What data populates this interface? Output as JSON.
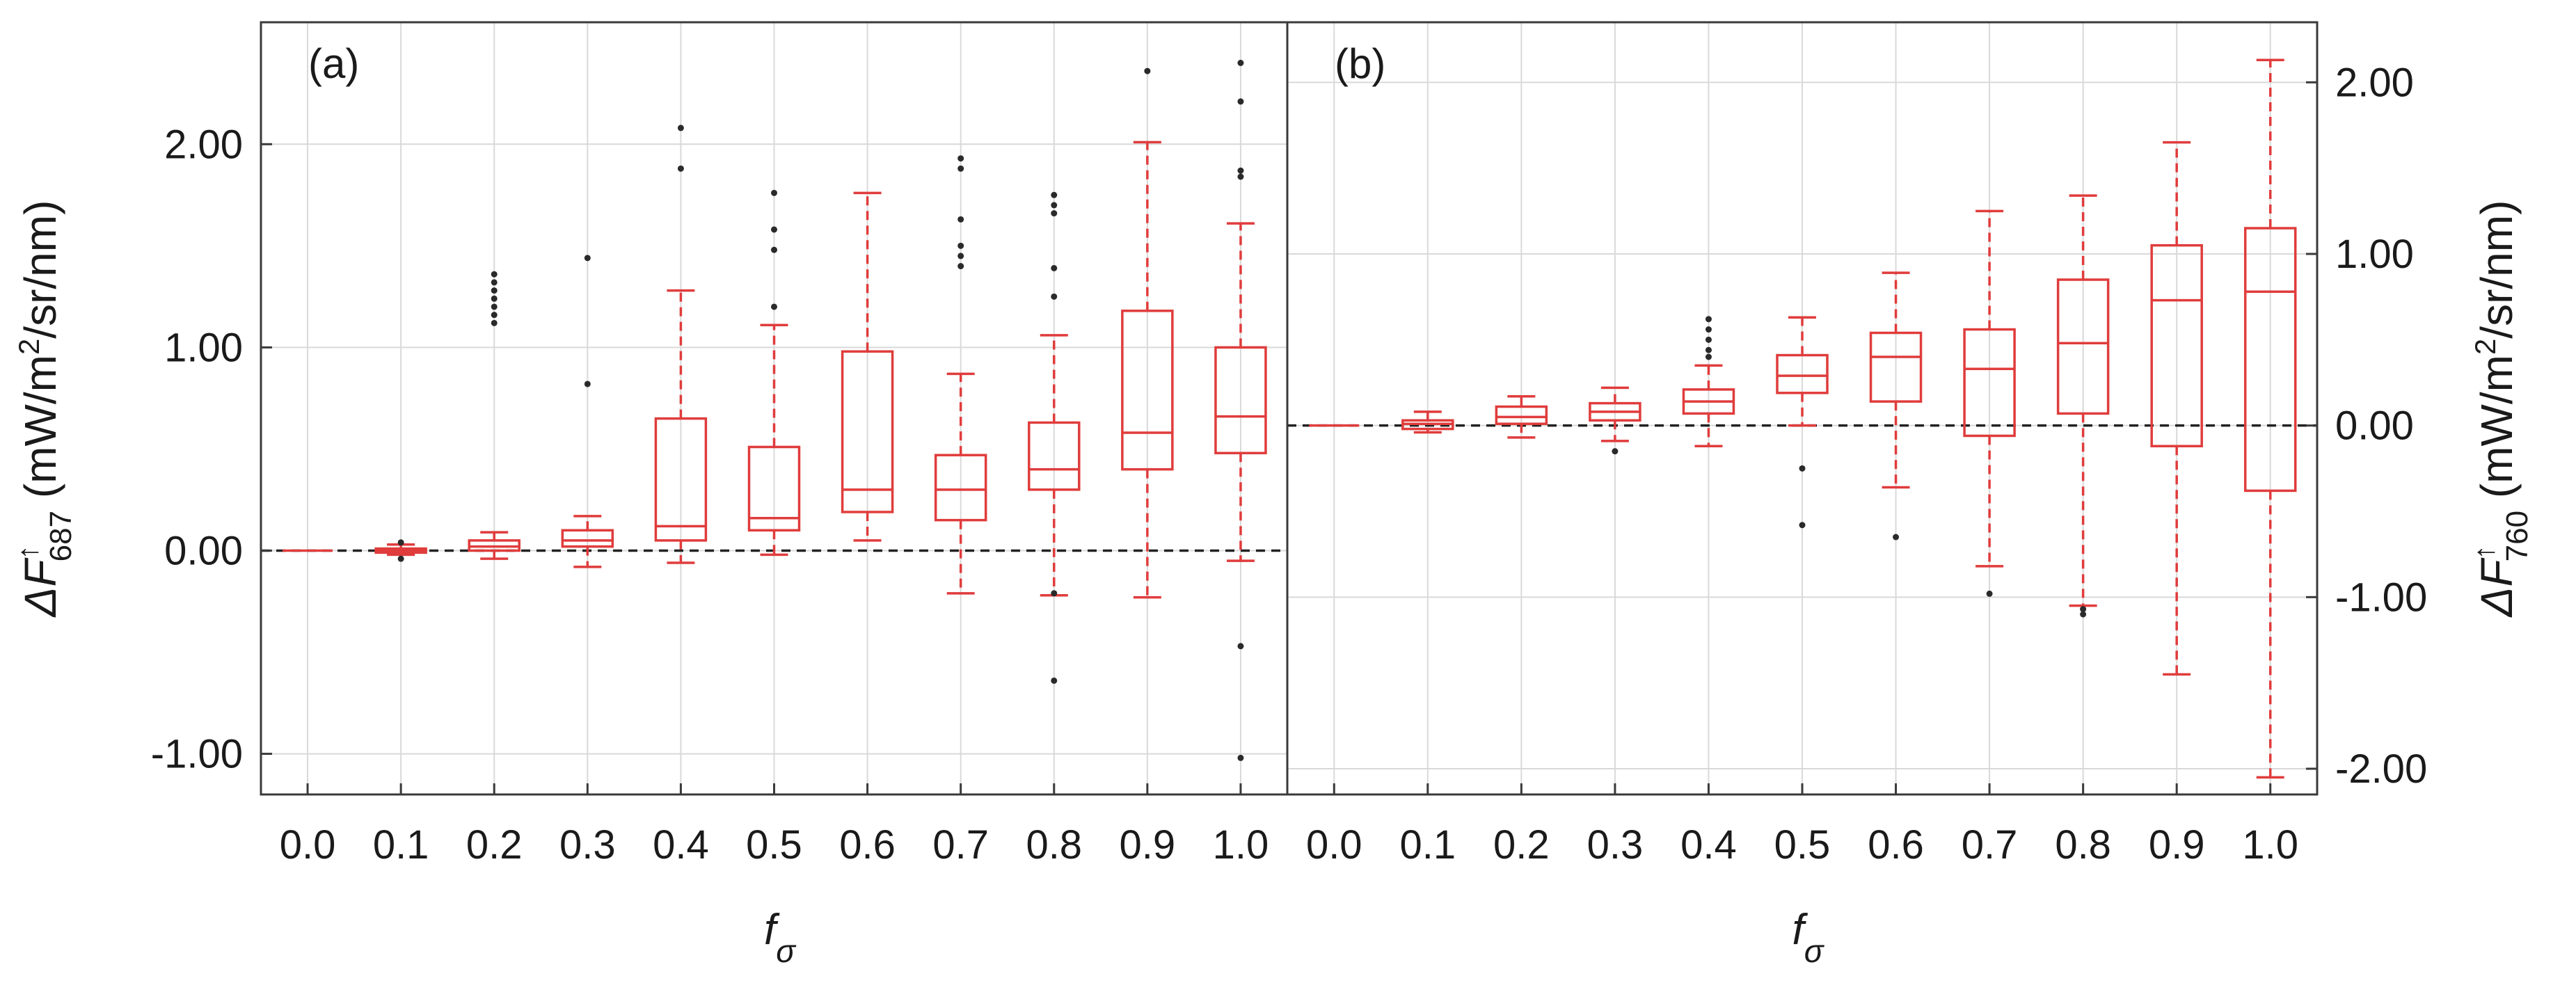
{
  "chart_data": [
    {
      "type": "boxplot",
      "panel_label": "(a)",
      "xlabel": "f",
      "xlabel_sub": "σ",
      "ylabel": {
        "prefix": "ΔF",
        "sup": "↑",
        "sub": "687",
        "units": " (mW/m",
        "units_sup": "2",
        "units_tail": "/sr/nm)"
      },
      "ylim": [
        -1.2,
        2.6
      ],
      "y_ticks": [
        -1.0,
        0.0,
        1.0,
        2.0
      ],
      "y_tick_labels": [
        "-1.00",
        "0.00",
        "1.00",
        "2.00"
      ],
      "y_axis_side": "left",
      "reference_line": 0.0,
      "categories": [
        "0.0",
        "0.1",
        "0.2",
        "0.3",
        "0.4",
        "0.5",
        "0.6",
        "0.7",
        "0.8",
        "0.9",
        "1.0"
      ],
      "boxes": [
        {
          "whisker_low": 0.0,
          "q1": 0.0,
          "median": 0.0,
          "q3": 0.0,
          "whisker_high": 0.0,
          "outliers": []
        },
        {
          "whisker_low": -0.02,
          "q1": -0.01,
          "median": 0.0,
          "q3": 0.01,
          "whisker_high": 0.03,
          "outliers": [
            -0.04,
            0.04
          ]
        },
        {
          "whisker_low": -0.04,
          "q1": 0.0,
          "median": 0.02,
          "q3": 0.05,
          "whisker_high": 0.09,
          "outliers": [
            1.12,
            1.16,
            1.2,
            1.24,
            1.28,
            1.32,
            1.36
          ]
        },
        {
          "whisker_low": -0.08,
          "q1": 0.02,
          "median": 0.05,
          "q3": 0.1,
          "whisker_high": 0.17,
          "outliers": [
            0.82,
            1.44
          ]
        },
        {
          "whisker_low": -0.06,
          "q1": 0.05,
          "median": 0.12,
          "q3": 0.65,
          "whisker_high": 1.28,
          "outliers": [
            1.88,
            2.08
          ]
        },
        {
          "whisker_low": -0.02,
          "q1": 0.1,
          "median": 0.16,
          "q3": 0.51,
          "whisker_high": 1.11,
          "outliers": [
            1.2,
            1.48,
            1.58,
            1.76
          ]
        },
        {
          "whisker_low": 0.05,
          "q1": 0.19,
          "median": 0.3,
          "q3": 0.98,
          "whisker_high": 1.76,
          "outliers": []
        },
        {
          "whisker_low": -0.21,
          "q1": 0.15,
          "median": 0.3,
          "q3": 0.47,
          "whisker_high": 0.87,
          "outliers": [
            1.4,
            1.45,
            1.5,
            1.63,
            1.88,
            1.93
          ]
        },
        {
          "whisker_low": -0.22,
          "q1": 0.3,
          "median": 0.4,
          "q3": 0.63,
          "whisker_high": 1.06,
          "outliers": [
            -0.21,
            -0.64,
            1.25,
            1.39,
            1.66,
            1.7,
            1.75
          ]
        },
        {
          "whisker_low": -0.23,
          "q1": 0.4,
          "median": 0.58,
          "q3": 1.18,
          "whisker_high": 2.01,
          "outliers": [
            2.36
          ]
        },
        {
          "whisker_low": -0.05,
          "q1": 0.48,
          "median": 0.66,
          "q3": 1.0,
          "whisker_high": 1.61,
          "outliers": [
            -0.47,
            -1.02,
            1.84,
            1.87,
            2.21,
            2.4
          ]
        }
      ]
    },
    {
      "type": "boxplot",
      "panel_label": "(b)",
      "xlabel": "f",
      "xlabel_sub": "σ",
      "ylabel": {
        "prefix": "ΔF",
        "sup": "↑",
        "sub": "760",
        "units": " (mW/m",
        "units_sup": "2",
        "units_tail": "/sr/nm)"
      },
      "ylim": [
        -2.15,
        2.35
      ],
      "y_ticks": [
        -2.0,
        -1.0,
        0.0,
        1.0,
        2.0
      ],
      "y_tick_labels": [
        "-2.00",
        "-1.00",
        "0.00",
        "1.00",
        "2.00"
      ],
      "y_axis_side": "right",
      "reference_line": 0.0,
      "categories": [
        "0.0",
        "0.1",
        "0.2",
        "0.3",
        "0.4",
        "0.5",
        "0.6",
        "0.7",
        "0.8",
        "0.9",
        "1.0"
      ],
      "boxes": [
        {
          "whisker_low": 0.0,
          "q1": 0.0,
          "median": 0.0,
          "q3": 0.0,
          "whisker_high": 0.0,
          "outliers": []
        },
        {
          "whisker_low": -0.04,
          "q1": -0.02,
          "median": 0.01,
          "q3": 0.03,
          "whisker_high": 0.08,
          "outliers": []
        },
        {
          "whisker_low": -0.07,
          "q1": 0.01,
          "median": 0.05,
          "q3": 0.11,
          "whisker_high": 0.17,
          "outliers": []
        },
        {
          "whisker_low": -0.09,
          "q1": 0.03,
          "median": 0.08,
          "q3": 0.13,
          "whisker_high": 0.22,
          "outliers": [
            -0.15
          ]
        },
        {
          "whisker_low": -0.12,
          "q1": 0.07,
          "median": 0.14,
          "q3": 0.21,
          "whisker_high": 0.35,
          "outliers": [
            0.4,
            0.44,
            0.5,
            0.56,
            0.62
          ]
        },
        {
          "whisker_low": 0.0,
          "q1": 0.19,
          "median": 0.29,
          "q3": 0.41,
          "whisker_high": 0.63,
          "outliers": [
            -0.25,
            -0.58
          ]
        },
        {
          "whisker_low": -0.36,
          "q1": 0.14,
          "median": 0.4,
          "q3": 0.54,
          "whisker_high": 0.89,
          "outliers": [
            -0.65
          ]
        },
        {
          "whisker_low": -0.82,
          "q1": -0.06,
          "median": 0.33,
          "q3": 0.56,
          "whisker_high": 1.25,
          "outliers": [
            -0.98
          ]
        },
        {
          "whisker_low": -1.05,
          "q1": 0.07,
          "median": 0.48,
          "q3": 0.85,
          "whisker_high": 1.34,
          "outliers": [
            -1.07,
            -1.1
          ]
        },
        {
          "whisker_low": -1.45,
          "q1": -0.12,
          "median": 0.73,
          "q3": 1.05,
          "whisker_high": 1.65,
          "outliers": []
        },
        {
          "whisker_low": -2.05,
          "q1": -0.38,
          "median": 0.78,
          "q3": 1.15,
          "whisker_high": 2.13,
          "outliers": []
        }
      ]
    }
  ]
}
